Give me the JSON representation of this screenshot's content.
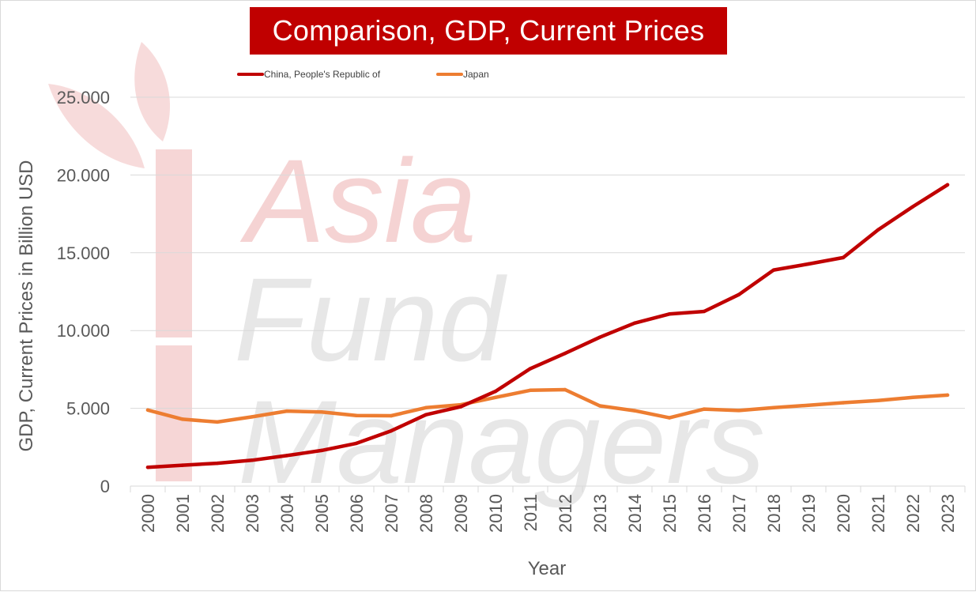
{
  "watermark": {
    "line1": "Asia",
    "line2": "Fund",
    "line3": "Managers"
  },
  "colors": {
    "china": "#c00000",
    "japan": "#ed7d31",
    "title_bg": "#c00000",
    "watermark_red": "#f4cccc",
    "watermark_gray": "#e3e3e3",
    "grid": "#d9d9d9",
    "text": "#595959"
  },
  "chart_data": {
    "type": "line",
    "title": "Comparison, GDP, Current Prices",
    "xlabel": "Year",
    "ylabel": "GDP, Current Prices in Billion USD",
    "x": [
      "2000",
      "2001",
      "2002",
      "2003",
      "2004",
      "2005",
      "2006",
      "2007",
      "2008",
      "2009",
      "2010",
      "2011",
      "2012",
      "2013",
      "2014",
      "2015",
      "2016",
      "2017",
      "2018",
      "2019",
      "2020",
      "2021",
      "2022",
      "2023"
    ],
    "ylim": [
      0,
      25000
    ],
    "yticks": [
      0,
      5000,
      10000,
      15000,
      20000,
      25000
    ],
    "ytick_labels": [
      "0",
      "5.000",
      "10.000",
      "15.000",
      "20.000",
      "25.000"
    ],
    "grid": "horizontal",
    "legend_position": "top-left",
    "series": [
      {
        "name": "China, People's Republic of",
        "color": "#c00000",
        "values": [
          1210,
          1340,
          1470,
          1660,
          1960,
          2290,
          2750,
          3550,
          4590,
          5100,
          6090,
          7550,
          8530,
          9570,
          10480,
          11060,
          11230,
          12310,
          13890,
          14280,
          14690,
          16470,
          17960,
          19370
        ]
      },
      {
        "name": "Japan",
        "color": "#ed7d31",
        "values": [
          4890,
          4300,
          4120,
          4450,
          4820,
          4760,
          4530,
          4520,
          5040,
          5230,
          5700,
          6160,
          6200,
          5160,
          4850,
          4390,
          4950,
          4860,
          5040,
          5200,
          5360,
          5500,
          5700,
          5850
        ]
      }
    ]
  }
}
